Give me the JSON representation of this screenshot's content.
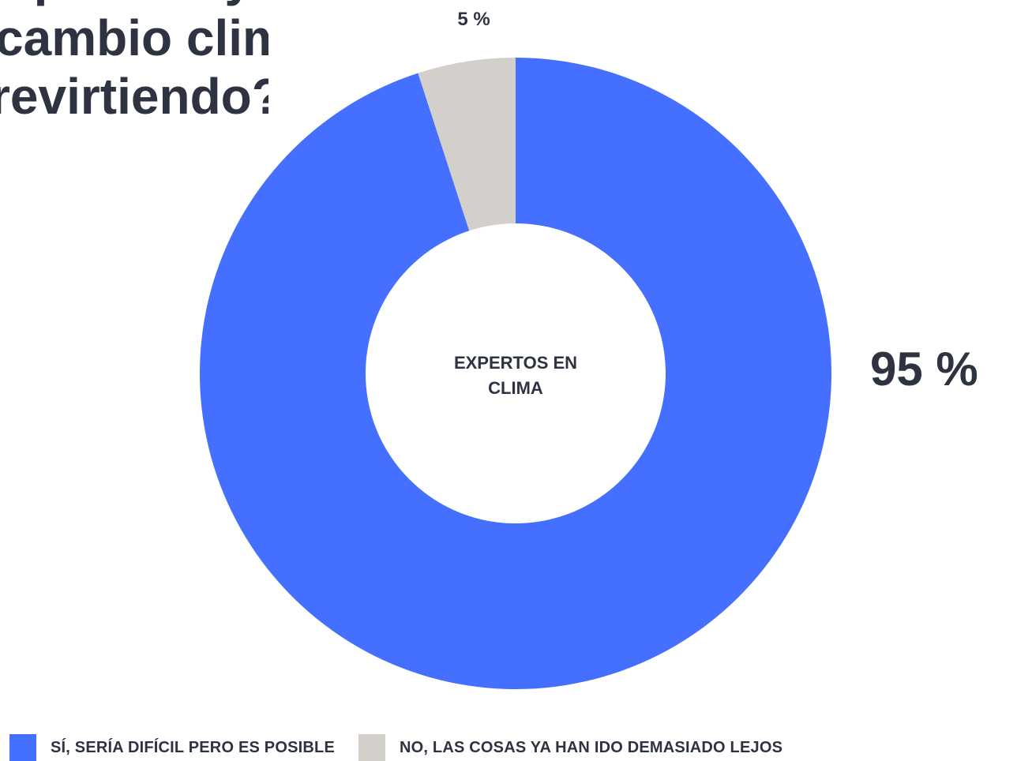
{
  "title": {
    "lines": [
      "¿Es posible y",
      "cambio climático",
      "revirtiendo?"
    ]
  },
  "chart_data": {
    "type": "pie",
    "variant": "donut",
    "center_label": [
      "EXPERTOS EN",
      "CLIMA"
    ],
    "slices": [
      {
        "name": "SÍ, SERÍA DIFÍCIL PERO ES POSIBLE",
        "value": 95,
        "label": "95 %",
        "color": "#4570ff"
      },
      {
        "name": "NO, LAS COSAS YA HAN IDO DEMASIADO LEJOS",
        "value": 5,
        "label": "5 %",
        "color": "#d3d0cb"
      }
    ],
    "legend_position": "bottom"
  },
  "legend": {
    "items": [
      {
        "label": "SÍ, SERÍA DIFÍCIL PERO ES POSIBLE",
        "color": "#4570ff"
      },
      {
        "label": "NO, LAS COSAS YA HAN IDO DEMASIADO LEJOS",
        "color": "#d3d0cb"
      }
    ]
  }
}
